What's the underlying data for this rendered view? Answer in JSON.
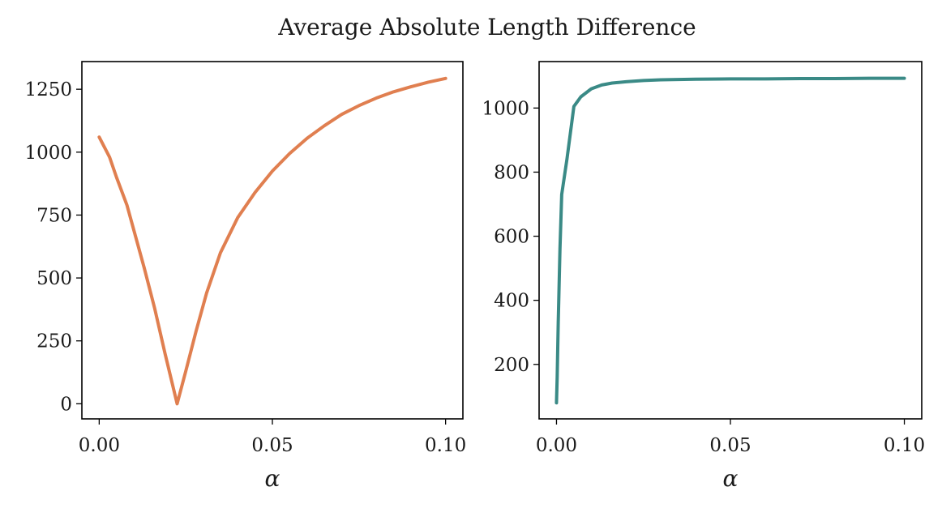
{
  "figure": {
    "title": "Average Absolute Length Difference"
  },
  "chart_data": [
    {
      "type": "line",
      "xlabel": "α",
      "ylabel": "",
      "xlim": [
        -0.005,
        0.105
      ],
      "ylim": [
        -60,
        1360
      ],
      "xticks": [
        0.0,
        0.05,
        0.1
      ],
      "xtick_labels": [
        "0.00",
        "0.05",
        "0.10"
      ],
      "yticks": [
        0,
        250,
        500,
        750,
        1000,
        1250
      ],
      "ytick_labels": [
        "0",
        "250",
        "500",
        "750",
        "1000",
        "1250"
      ],
      "grid": false,
      "series": [
        {
          "color": "#e07f50",
          "x": [
            0.0,
            0.003,
            0.005,
            0.008,
            0.01,
            0.013,
            0.016,
            0.019,
            0.0225,
            0.025,
            0.028,
            0.031,
            0.035,
            0.04,
            0.045,
            0.05,
            0.055,
            0.06,
            0.065,
            0.07,
            0.075,
            0.08,
            0.085,
            0.09,
            0.095,
            0.1
          ],
          "y": [
            1060,
            980,
            900,
            790,
            690,
            540,
            380,
            200,
            0,
            130,
            290,
            440,
            600,
            740,
            840,
            925,
            995,
            1055,
            1105,
            1150,
            1185,
            1215,
            1240,
            1260,
            1278,
            1293
          ]
        }
      ]
    },
    {
      "type": "line",
      "xlabel": "α",
      "ylabel": "",
      "xlim": [
        -0.005,
        0.105
      ],
      "ylim": [
        30,
        1145
      ],
      "xticks": [
        0.0,
        0.05,
        0.1
      ],
      "xtick_labels": [
        "0.00",
        "0.05",
        "0.10"
      ],
      "yticks": [
        200,
        400,
        600,
        800,
        1000
      ],
      "ytick_labels": [
        "200",
        "400",
        "600",
        "800",
        "1000"
      ],
      "grid": false,
      "series": [
        {
          "color": "#3a8a86",
          "x": [
            0.0,
            0.0002,
            0.0005,
            0.001,
            0.0015,
            0.003,
            0.005,
            0.007,
            0.01,
            0.013,
            0.016,
            0.02,
            0.025,
            0.03,
            0.04,
            0.05,
            0.06,
            0.07,
            0.08,
            0.09,
            0.1
          ],
          "y": [
            80,
            160,
            330,
            560,
            730,
            840,
            1005,
            1035,
            1060,
            1072,
            1078,
            1082,
            1086,
            1088,
            1090,
            1091,
            1091,
            1092,
            1092,
            1093,
            1093
          ]
        }
      ]
    }
  ]
}
